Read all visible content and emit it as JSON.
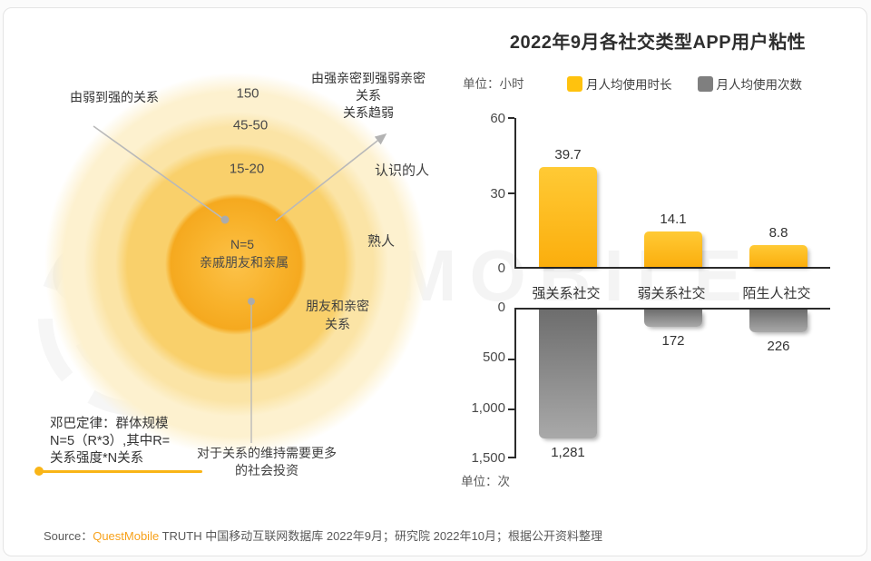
{
  "title": "2022年9月各社交类型APP用户粘性",
  "watermark": {
    "text": "QUEST MOBILE"
  },
  "diagram": {
    "arrow_label_left": "由弱到强的关系",
    "arrow_label_right_line1": "由强亲密到强弱亲密",
    "arrow_label_right_line2": "关系",
    "arrow_label_right_line3": "关系趋弱",
    "ring_150": "150",
    "ring_45_50": "45-50",
    "ring_15_20": "15-20",
    "center_line1": "N=5",
    "center_line2": "亲戚朋友和亲属",
    "label_acquaintances": "认识的人",
    "label_familiar": "熟人",
    "label_friends_line1": "朋友和亲密",
    "label_friends_line2": "关系",
    "dunbar_line1": "邓巴定律：群体规模",
    "dunbar_line2": "N=5（R*3）,其中R=",
    "dunbar_line3": "关系强度*N关系",
    "bottom_note_line1": "对于关系的维持需要更多",
    "bottom_note_line2": "的社会投资"
  },
  "chart": {
    "unit_hours_label": "单位：小时",
    "unit_times_label": "单位：次",
    "hours_axis": [
      "60",
      "30",
      "0"
    ],
    "times_axis": [
      "0",
      "500",
      "1,000",
      "1,500"
    ],
    "hours_values": [
      "39.7",
      "14.1",
      "8.8"
    ],
    "times_values": [
      "1,281",
      "172",
      "226"
    ],
    "categories": [
      "强关系社交",
      "弱关系社交",
      "陌生人社交"
    ]
  },
  "chart_data": {
    "type": "bar",
    "title": "2022年9月各社交类型APP用户粘性",
    "categories": [
      "强关系社交",
      "弱关系社交",
      "陌生人社交"
    ],
    "series": [
      {
        "name": "月人均使用时长",
        "unit": "小时",
        "values": [
          39.7,
          14.1,
          8.8
        ],
        "axis_max": 60,
        "axis_ticks": [
          0,
          30,
          60
        ],
        "color": "#FFC20E",
        "orientation": "up"
      },
      {
        "name": "月人均使用次数",
        "unit": "次",
        "values": [
          1281,
          172,
          226
        ],
        "axis_max": 1500,
        "axis_ticks": [
          0,
          500,
          1000,
          1500
        ],
        "color": "#7F7F7F",
        "orientation": "down-inverted"
      }
    ],
    "legend_position": "top",
    "grid": false
  },
  "source": {
    "prefix": "Source：",
    "brand": "QuestMobile",
    "rest": " TRUTH 中国移动互联网数据库 2022年9月；研究院 2022年10月；根据公开资料整理"
  }
}
